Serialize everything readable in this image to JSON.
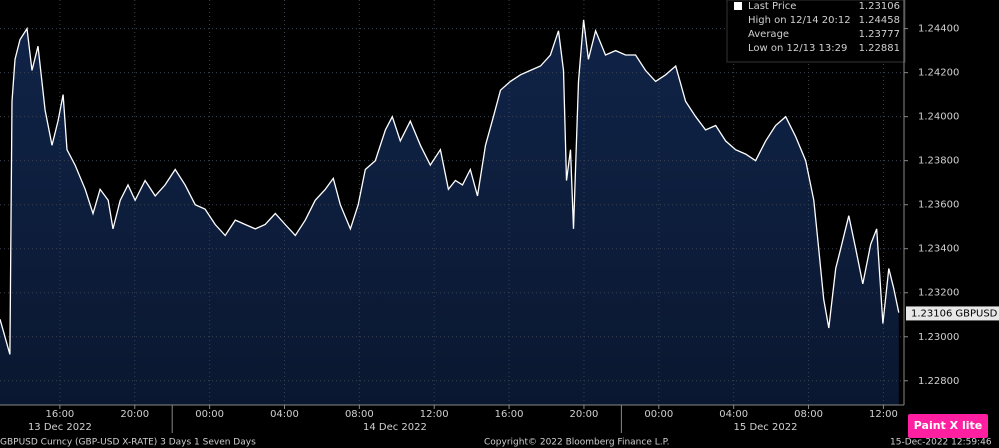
{
  "chart_data": {
    "type": "area",
    "ticker": "GBPUSD",
    "last_value": 1.23106,
    "series": [
      {
        "name": "Last Price",
        "color": "#ffffff",
        "values": [
          1.2308,
          1.2292,
          1.2407,
          1.2426,
          1.2435,
          1.244,
          1.2421,
          1.2432,
          1.2403,
          1.2387,
          1.2398,
          1.241,
          1.2385,
          1.2378,
          1.2367,
          1.2356,
          1.2367,
          1.2362,
          1.2349,
          1.2362,
          1.2369,
          1.2362,
          1.2371,
          1.2364,
          1.2369,
          1.2376,
          1.2369,
          1.236,
          1.2358,
          1.2351,
          1.2346,
          1.2353,
          1.2351,
          1.2349,
          1.2351,
          1.2356,
          1.2351,
          1.2346,
          1.2353,
          1.2362,
          1.2367,
          1.2372,
          1.236,
          1.2349,
          1.236,
          1.2376,
          1.238,
          1.2394,
          1.24,
          1.2389,
          1.2398,
          1.2387,
          1.2378,
          1.2385,
          1.2367,
          1.2371,
          1.2369,
          1.2376,
          1.2364,
          1.2387,
          1.24,
          1.2412,
          1.2416,
          1.2419,
          1.2421,
          1.2423,
          1.2428,
          1.2439,
          1.2421,
          1.2371,
          1.2385,
          1.2349,
          1.2416,
          1.2444,
          1.2426,
          1.2439,
          1.2428,
          1.243,
          1.2428,
          1.2428,
          1.2421,
          1.2416,
          1.2419,
          1.2423,
          1.2407,
          1.24,
          1.2394,
          1.2396,
          1.2389,
          1.2385,
          1.2383,
          1.238,
          1.2389,
          1.2396,
          1.24,
          1.2391,
          1.238,
          1.2362,
          1.234,
          1.2317,
          1.2304,
          1.2331,
          1.234,
          1.2355,
          1.234,
          1.2324,
          1.2342,
          1.2349,
          1.2306,
          1.2331,
          1.2322,
          1.2311
        ]
      }
    ],
    "x": [
      12.8,
      13.33,
      13.44,
      13.6,
      13.87,
      14.24,
      14.51,
      14.83,
      15.21,
      15.58,
      15.9,
      16.17,
      16.38,
      16.81,
      17.35,
      17.77,
      18.15,
      18.58,
      18.84,
      19.22,
      19.64,
      20.02,
      20.55,
      21.09,
      21.62,
      22.16,
      22.69,
      23.23,
      23.76,
      24.3,
      24.83,
      25.37,
      25.9,
      26.44,
      26.97,
      27.51,
      28.04,
      28.58,
      29.11,
      29.64,
      30.18,
      30.61,
      30.98,
      31.52,
      31.94,
      32.32,
      32.85,
      33.39,
      33.76,
      34.19,
      34.72,
      35.26,
      35.79,
      36.33,
      36.76,
      37.13,
      37.51,
      37.93,
      38.31,
      38.74,
      39.16,
      39.54,
      40.07,
      40.61,
      41.14,
      41.68,
      42.21,
      42.64,
      42.91,
      43.07,
      43.28,
      43.44,
      43.71,
      43.98,
      44.24,
      44.62,
      45.15,
      45.69,
      46.22,
      46.76,
      47.29,
      47.83,
      48.36,
      48.9,
      49.43,
      49.97,
      50.5,
      51.04,
      51.57,
      52.1,
      52.64,
      53.17,
      53.71,
      54.24,
      54.78,
      55.31,
      55.85,
      56.28,
      56.54,
      56.81,
      57.08,
      57.45,
      57.72,
      58.15,
      58.52,
      58.9,
      59.32,
      59.64,
      59.97,
      60.29,
      60.55,
      60.82
    ],
    "xlim": [
      12.8,
      61.1
    ],
    "ylim": [
      1.2269,
      1.2453
    ],
    "yticks": [
      {
        "value": 1.228,
        "label": "1.22800"
      },
      {
        "value": 1.23,
        "label": "1.23000"
      },
      {
        "value": 1.232,
        "label": "1.23200"
      },
      {
        "value": 1.234,
        "label": "1.23400"
      },
      {
        "value": 1.236,
        "label": "1.23600"
      },
      {
        "value": 1.238,
        "label": "1.23800"
      },
      {
        "value": 1.24,
        "label": "1.24000"
      },
      {
        "value": 1.242,
        "label": "1.24200"
      },
      {
        "value": 1.244,
        "label": "1.24400"
      }
    ],
    "xticks": [
      {
        "value": 16,
        "label": "16:00"
      },
      {
        "value": 20,
        "label": "20:00"
      },
      {
        "value": 24,
        "label": "00:00"
      },
      {
        "value": 28,
        "label": "04:00"
      },
      {
        "value": 32,
        "label": "08:00"
      },
      {
        "value": 36,
        "label": "12:00"
      },
      {
        "value": 40,
        "label": "16:00"
      },
      {
        "value": 44,
        "label": "20:00"
      },
      {
        "value": 48,
        "label": "00:00"
      },
      {
        "value": 52,
        "label": "04:00"
      },
      {
        "value": 56,
        "label": "08:00"
      },
      {
        "value": 60,
        "label": "12:00"
      }
    ],
    "date_labels": [
      {
        "value": 16,
        "label": "13 Dec 2022"
      },
      {
        "value": 33.9,
        "label": "14 Dec 2022"
      },
      {
        "value": 53.7,
        "label": "15 Dec 2022"
      }
    ],
    "day_breaks": [
      22,
      46
    ],
    "stats": [
      {
        "label": "High on 12/14 20:12",
        "value": 1.24458
      },
      {
        "label": "Average",
        "value": 1.23777
      },
      {
        "label": "Low on 12/13 13:29",
        "value": 1.22881
      }
    ],
    "grid": true,
    "footer_left": "GBPUSD Curncy (GBP-USD X-RATE) 3 Days 1 Seven Days",
    "footer_center": "Copyright© 2022 Bloomberg Finance L.P.",
    "footer_right": "15-Dec-2022 12:59:46",
    "watermark": "Paint X lite"
  }
}
